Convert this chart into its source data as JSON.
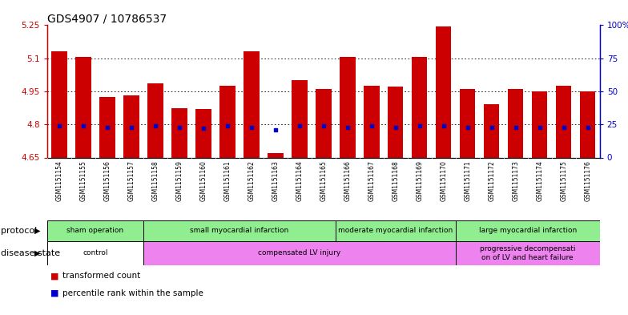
{
  "title": "GDS4907 / 10786537",
  "samples": [
    "GSM1151154",
    "GSM1151155",
    "GSM1151156",
    "GSM1151157",
    "GSM1151158",
    "GSM1151159",
    "GSM1151160",
    "GSM1151161",
    "GSM1151162",
    "GSM1151163",
    "GSM1151164",
    "GSM1151165",
    "GSM1151166",
    "GSM1151167",
    "GSM1151168",
    "GSM1151169",
    "GSM1151170",
    "GSM1151171",
    "GSM1151172",
    "GSM1151173",
    "GSM1151174",
    "GSM1151175",
    "GSM1151176"
  ],
  "bar_values": [
    5.13,
    5.105,
    4.925,
    4.93,
    4.985,
    4.875,
    4.87,
    4.975,
    5.13,
    4.67,
    5.0,
    4.96,
    5.105,
    4.975,
    4.97,
    5.105,
    5.245,
    4.96,
    4.89,
    4.96,
    4.95,
    4.975,
    4.95
  ],
  "blue_values": [
    4.793,
    4.793,
    4.785,
    4.787,
    4.793,
    4.786,
    4.782,
    4.793,
    4.786,
    4.775,
    4.793,
    4.793,
    4.785,
    4.793,
    4.785,
    4.793,
    4.793,
    4.785,
    4.786,
    4.785,
    4.786,
    4.785,
    4.786
  ],
  "ymin": 4.65,
  "ymax": 5.25,
  "yticks": [
    4.65,
    4.8,
    4.95,
    5.1,
    5.25
  ],
  "ytick_labels": [
    "4.65",
    "4.8",
    "4.95",
    "5.1",
    "5.25"
  ],
  "right_yticks": [
    0,
    25,
    50,
    75,
    100
  ],
  "right_ytick_labels": [
    "0",
    "25",
    "50",
    "75",
    "100%"
  ],
  "bar_color": "#cc0000",
  "blue_color": "#0000cc",
  "protocol_groups": [
    {
      "label": "sham operation",
      "start": 0,
      "end": 4,
      "color": "#90ee90"
    },
    {
      "label": "small myocardial infarction",
      "start": 4,
      "end": 12,
      "color": "#90ee90"
    },
    {
      "label": "moderate myocardial infarction",
      "start": 12,
      "end": 17,
      "color": "#90ee90"
    },
    {
      "label": "large myocardial infarction",
      "start": 17,
      "end": 23,
      "color": "#90ee90"
    }
  ],
  "disease_groups": [
    {
      "label": "control",
      "start": 0,
      "end": 4,
      "color": "white"
    },
    {
      "label": "compensated LV injury",
      "start": 4,
      "end": 17,
      "color": "#ee82ee"
    },
    {
      "label": "progressive decompensati\non of LV and heart failure",
      "start": 17,
      "end": 23,
      "color": "#ee82ee"
    }
  ],
  "protocol_label": "protocol",
  "disease_label": "disease state",
  "legend_items": [
    {
      "label": "transformed count",
      "color": "#cc0000"
    },
    {
      "label": "percentile rank within the sample",
      "color": "#0000cc"
    }
  ],
  "grid_dotted_at": [
    4.8,
    4.95,
    5.1
  ],
  "title_fontsize": 10,
  "tick_fontsize": 7.5,
  "sample_fontsize": 5.5
}
